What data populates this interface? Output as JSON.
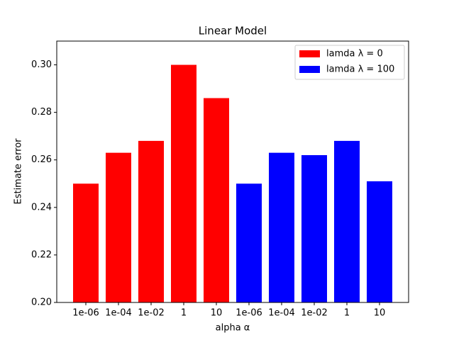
{
  "chart_data": {
    "type": "bar",
    "title": "Linear Model",
    "xlabel": "alpha α",
    "ylabel": "Estimate error",
    "categories": [
      "1e-06",
      "1e-04",
      "1e-02",
      "1",
      "10",
      "1e-06",
      "1e-04",
      "1e-02",
      "1",
      "10"
    ],
    "series": [
      {
        "name": "lamda λ = 0",
        "color": "#ff0000",
        "values": [
          0.25,
          0.263,
          0.268,
          0.3,
          0.286,
          null,
          null,
          null,
          null,
          null
        ]
      },
      {
        "name": "lamda λ = 100",
        "color": "#0000ff",
        "values": [
          null,
          null,
          null,
          null,
          null,
          0.25,
          0.263,
          0.262,
          0.268,
          0.251
        ]
      }
    ],
    "ylim": [
      0.2,
      0.31
    ],
    "yticks": [
      {
        "value": 0.2,
        "label": "0.20"
      },
      {
        "value": 0.22,
        "label": "0.22"
      },
      {
        "value": 0.24,
        "label": "0.24"
      },
      {
        "value": 0.26,
        "label": "0.26"
      },
      {
        "value": 0.28,
        "label": "0.28"
      },
      {
        "value": 0.3,
        "label": "0.30"
      }
    ],
    "legend": "upper right"
  }
}
